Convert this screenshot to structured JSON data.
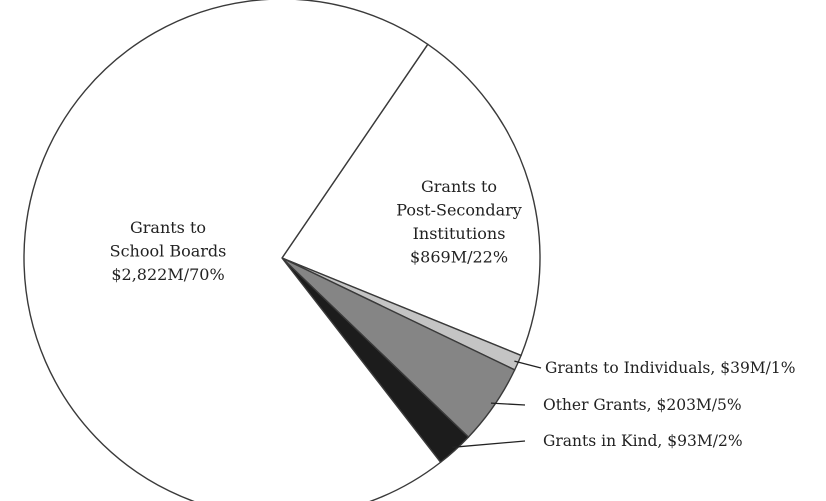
{
  "chart_data": {
    "type": "pie",
    "unit": "$M",
    "slices": [
      {
        "label_lines": [
          "Grants to",
          "Post-Secondary",
          "Institutions",
          "$869M/22%"
        ],
        "value": 869,
        "percent": 22,
        "color": "#ffffff",
        "label_style": "inside"
      },
      {
        "label_lines": [
          "Grants to Individuals, $39M/1%"
        ],
        "value": 39,
        "percent": 1,
        "color": "#c4c4c4",
        "label_style": "callout"
      },
      {
        "label_lines": [
          "Other Grants, $203M/5%"
        ],
        "value": 203,
        "percent": 5,
        "color": "#858585",
        "label_style": "callout"
      },
      {
        "label_lines": [
          "Grants in Kind, $93M/2%"
        ],
        "value": 93,
        "percent": 2,
        "color": "#1c1c1c",
        "label_style": "callout"
      },
      {
        "label_lines": [
          "Grants to",
          "School Boards",
          "$2,822M/70%"
        ],
        "value": 2822,
        "percent": 70,
        "color": "#ffffff",
        "label_style": "inside"
      }
    ]
  }
}
